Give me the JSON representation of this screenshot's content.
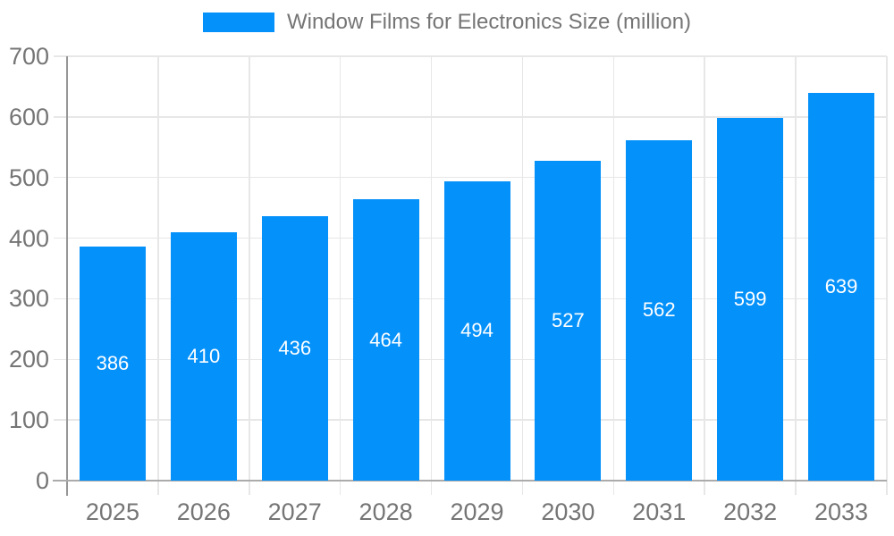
{
  "chart_data": {
    "type": "bar",
    "title": "Window Films for Electronics Size (million)",
    "legend_entries": [
      "Window Films for Electronics Size (million)"
    ],
    "legend_position": "top",
    "categories": [
      "2025",
      "2026",
      "2027",
      "2028",
      "2029",
      "2030",
      "2031",
      "2032",
      "2033"
    ],
    "values": [
      386,
      410,
      436,
      464,
      494,
      527,
      562,
      599,
      639
    ],
    "value_labels_shown": true,
    "xlabel": "",
    "ylabel": "",
    "ylim": [
      0,
      700
    ],
    "yticks": [
      0,
      100,
      200,
      300,
      400,
      500,
      600,
      700
    ],
    "grid": true,
    "colors": {
      "bar": "#0591fa",
      "value_label": "#ffffff",
      "axis_text": "#757575",
      "axis_line": "#979797",
      "baseline": "#ababab",
      "gridline": "#e7e7e7",
      "background": "#ffffff"
    }
  }
}
